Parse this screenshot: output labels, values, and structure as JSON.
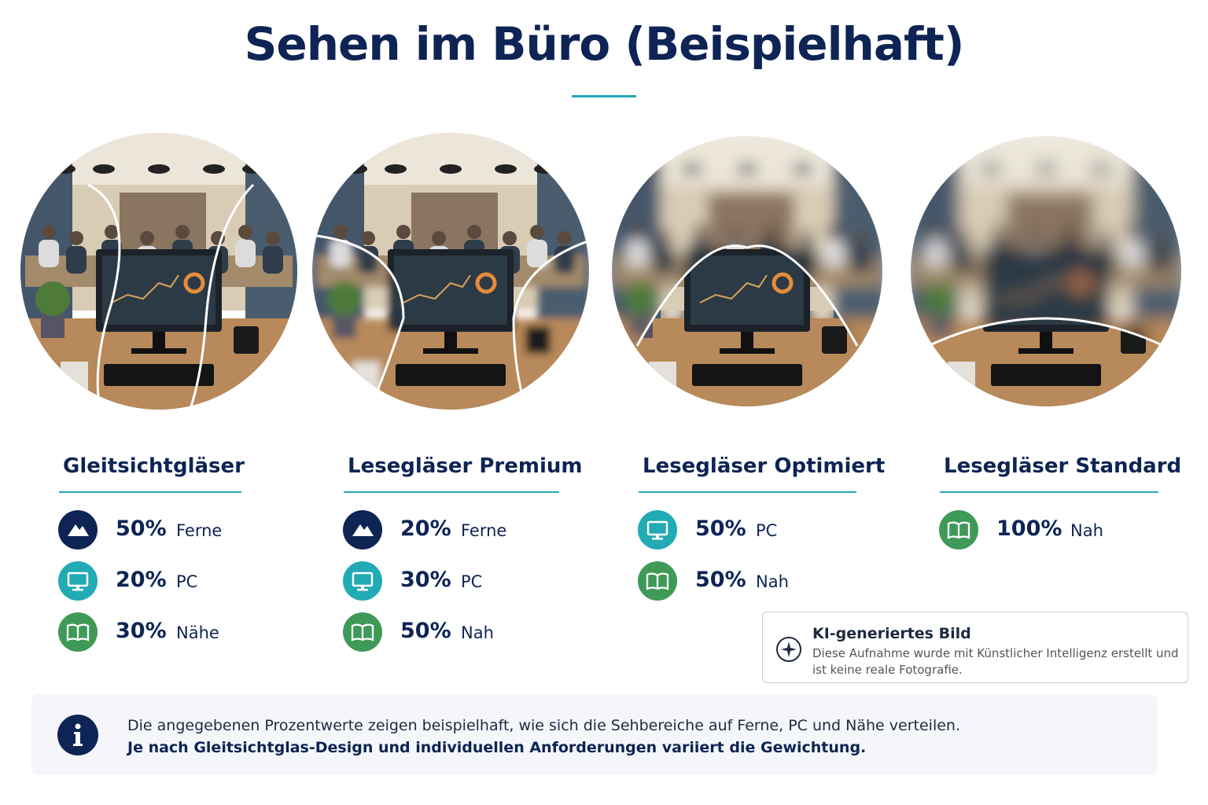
{
  "title": "Sehen im Büro (Beispielhaft)",
  "lenses": [
    {
      "name": "Gleitsichtgläser",
      "items": [
        {
          "icon": "ferne",
          "value": "50%",
          "label": "Ferne"
        },
        {
          "icon": "pc",
          "value": "20%",
          "label": "PC"
        },
        {
          "icon": "nah",
          "value": "30%",
          "label": "Nähe"
        }
      ]
    },
    {
      "name": "Lesegläser Premium",
      "items": [
        {
          "icon": "ferne",
          "value": "20%",
          "label": "Ferne"
        },
        {
          "icon": "pc",
          "value": "30%",
          "label": "PC"
        },
        {
          "icon": "nah",
          "value": "50%",
          "label": "Nah"
        }
      ]
    },
    {
      "name": "Lesegläser Optimiert",
      "items": [
        {
          "icon": "pc",
          "value": "50%",
          "label": "PC"
        },
        {
          "icon": "nah",
          "value": "50%",
          "label": "Nah"
        }
      ]
    },
    {
      "name": "Lesegläser Standard",
      "items": [
        {
          "icon": "nah",
          "value": "100%",
          "label": "Nah"
        }
      ]
    }
  ],
  "ai_notice": {
    "title": "KI-generiertes Bild",
    "text": "Diese Aufnahme wurde mit Künstlicher Intelligenz erstellt und ist keine reale Fotografie."
  },
  "info": {
    "line1": "Die angegebenen Prozentwerte zeigen beispielhaft, wie sich die Sehbereiche auf Ferne, PC und Nähe verteilen.",
    "line2": "Je nach Gleitsichtglas-Design und individuellen Anforderungen variiert die Gewichtung."
  }
}
